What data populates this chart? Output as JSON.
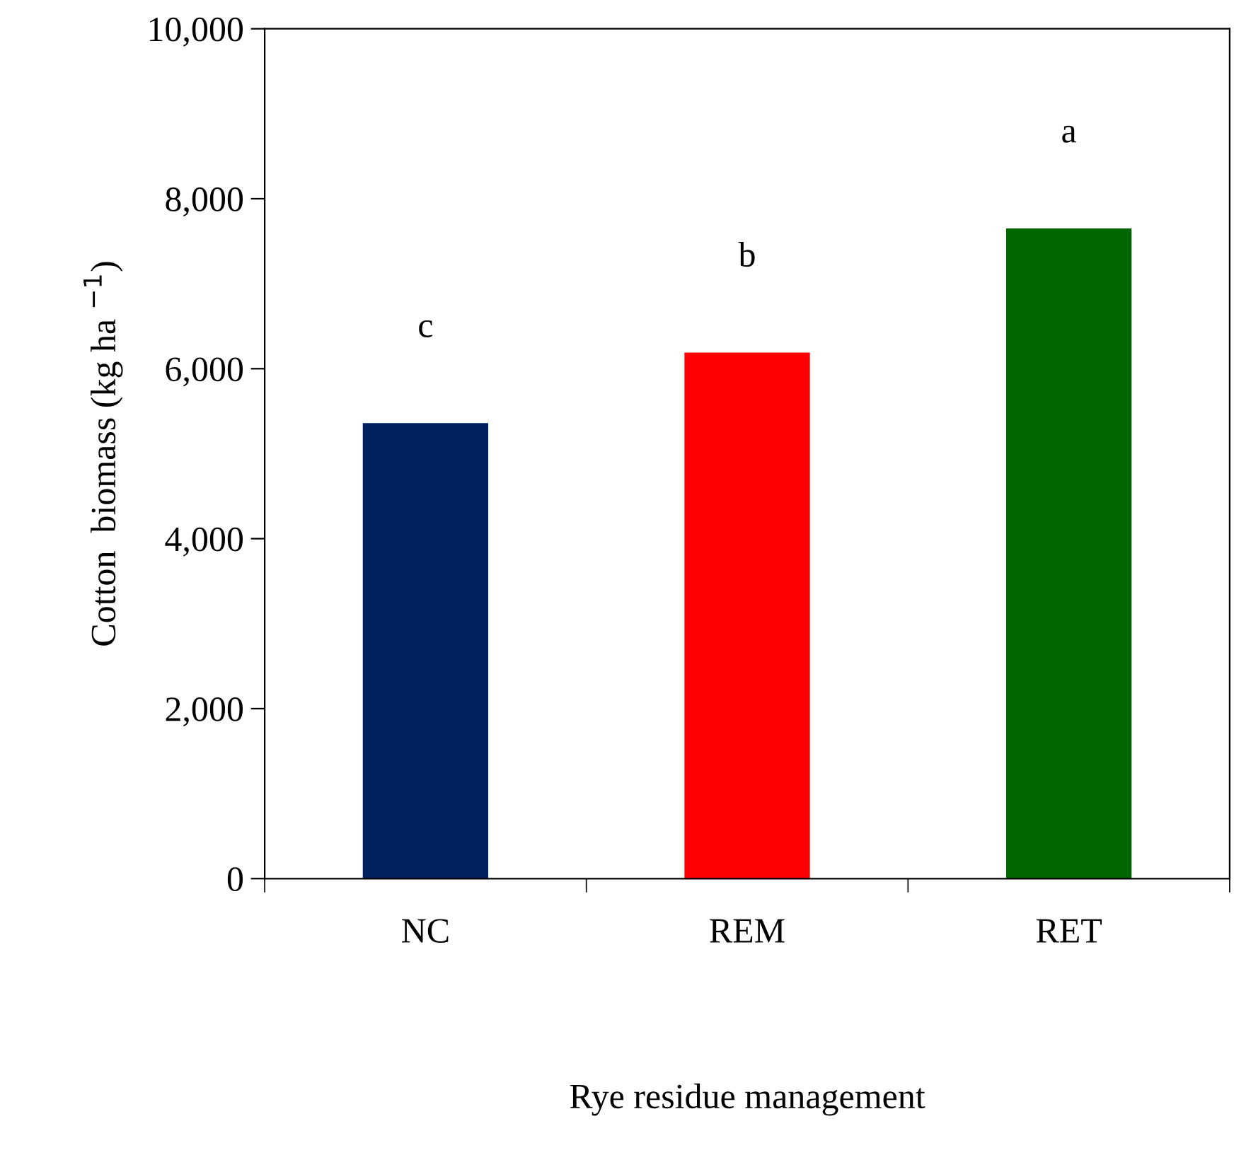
{
  "chart_data": {
    "type": "bar",
    "xlabel": "Rye residue management",
    "ylabel": "Cotton  biomass (kg ha $^{−1}$)",
    "categories": [
      "NC",
      "REM",
      "RET"
    ],
    "values": [
      5360,
      6190,
      7650
    ],
    "colors": [
      "#002060",
      "#ff0000",
      "#006600"
    ],
    "ylim": [
      0,
      10000
    ],
    "yticks": [
      0,
      {
        "value": 2000,
        "label": "2,000"
      },
      {
        "value": 4000,
        "label": "4,000"
      },
      {
        "value": 6000,
        "label": "6,000"
      },
      {
        "value": 8000,
        "label": "8,000"
      },
      {
        "value": 10000,
        "label": "10,000"
      }
    ],
    "grid": false,
    "legend": false,
    "annotations": [
      "c",
      "b",
      "a"
    ]
  }
}
